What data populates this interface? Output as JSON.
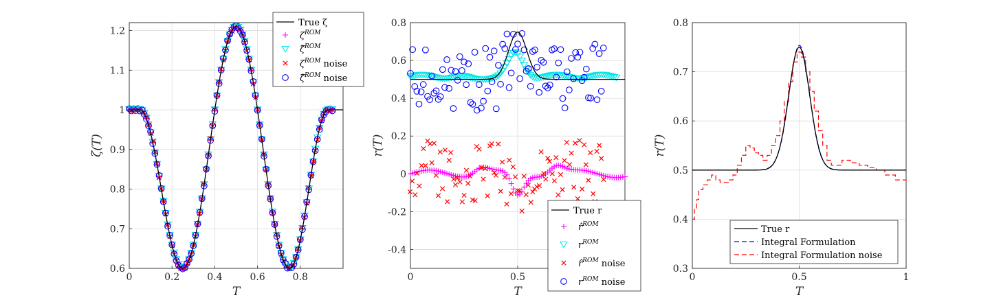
{
  "chart_data": [
    {
      "type": "line",
      "title": "",
      "xlabel": "T",
      "ylabel": "ζ(T)",
      "xlim": [
        0,
        1
      ],
      "ylim": [
        0.6,
        1.22
      ],
      "xticks": [
        "0",
        "0.2",
        "0.4",
        "0.6",
        "0.8"
      ],
      "xtick_values": [
        0,
        0.2,
        0.4,
        0.6,
        0.8
      ],
      "yticks": [
        "0.6",
        "0.7",
        "0.8",
        "0.9",
        "1",
        "1.1",
        "1.2"
      ],
      "ytick_values": [
        0.6,
        0.7,
        0.8,
        0.9,
        1.0,
        1.1,
        1.2
      ],
      "grid": true,
      "legend_position": "top-right",
      "legend": [
        {
          "label": "True ζ",
          "marker": "line",
          "color": "#000000"
        },
        {
          "label": "ζ^ROM",
          "marker": "plus",
          "color": "#ff00ff"
        },
        {
          "label": "ζ̂^ROM",
          "marker": "triangle",
          "color": "#00e5e5"
        },
        {
          "label": "ζ^ROM noise",
          "marker": "x",
          "color": "#ff0000"
        },
        {
          "label": "ζ̂^ROM noise",
          "marker": "circle",
          "color": "#0000ff"
        }
      ],
      "series_description": "True ζ: 1 until T≈0.08, dips to 0.6 at T=0.25, peaks 1.21 at T=0.5, dips to 0.6 at T=0.75, returns to 1 at T≈0.92; ROM markers follow the curve for T in [0, 0.95]"
    },
    {
      "type": "scatter",
      "title": "",
      "xlabel": "T",
      "ylabel": "r(T)",
      "xlim": [
        0,
        1
      ],
      "ylim": [
        -0.5,
        0.8
      ],
      "xticks": [
        "0",
        "0.5"
      ],
      "xtick_values": [
        0,
        0.5
      ],
      "yticks": [
        "-0.4",
        "-0.2",
        "0",
        "0.2",
        "0.4",
        "0.6",
        "0.8"
      ],
      "ytick_values": [
        -0.4,
        -0.2,
        0,
        0.2,
        0.4,
        0.6,
        0.8
      ],
      "grid": true,
      "legend_position": "bottom-right",
      "legend": [
        {
          "label": "True r",
          "marker": "line",
          "color": "#000000"
        },
        {
          "label": "r̂^ROM",
          "marker": "plus",
          "color": "#ff00ff"
        },
        {
          "label": "r^ROM",
          "marker": "triangle",
          "color": "#00e5e5"
        },
        {
          "label": "r̂^ROM noise",
          "marker": "x",
          "color": "#ff0000"
        },
        {
          "label": "r^ROM noise",
          "marker": "circle",
          "color": "#0000ff"
        }
      ],
      "series_description": "True r: 0.5 baseline with Gaussian peak 0.75 at T=0.5; r^ROM ≈0.52 baseline with bump to 0.65 near T=0.48; r̂^ROM ≈0 with wiggles (-0.1 near T=0.5); noisy versions scattered around"
    },
    {
      "type": "line",
      "title": "",
      "xlabel": "T",
      "ylabel": "r(T)",
      "xlim": [
        0,
        1
      ],
      "ylim": [
        0.3,
        0.8
      ],
      "xticks": [
        "0",
        "0.5",
        "1"
      ],
      "xtick_values": [
        0,
        0.5,
        1
      ],
      "yticks": [
        "0.3",
        "0.4",
        "0.5",
        "0.6",
        "0.7",
        "0.8"
      ],
      "ytick_values": [
        0.3,
        0.4,
        0.5,
        0.6,
        0.7,
        0.8
      ],
      "grid": true,
      "legend_position": "bottom-center",
      "legend": [
        {
          "label": "True r",
          "marker": "line",
          "color": "#000000"
        },
        {
          "label": "Integral Formulation",
          "marker": "dashed",
          "color": "#0000ff"
        },
        {
          "label": "Integral Formulation noise",
          "marker": "dashed",
          "color": "#ff0000"
        }
      ],
      "series_description": "True r: 0.5 + 0.25·exp(-((T-0.5)/0.07)^2); blue dashed nearly identical; red dashed staircase starting at 0.4, bump 0.55 at T≈0.26, peak 0.74 near T=0.5, ends 0.48"
    }
  ]
}
